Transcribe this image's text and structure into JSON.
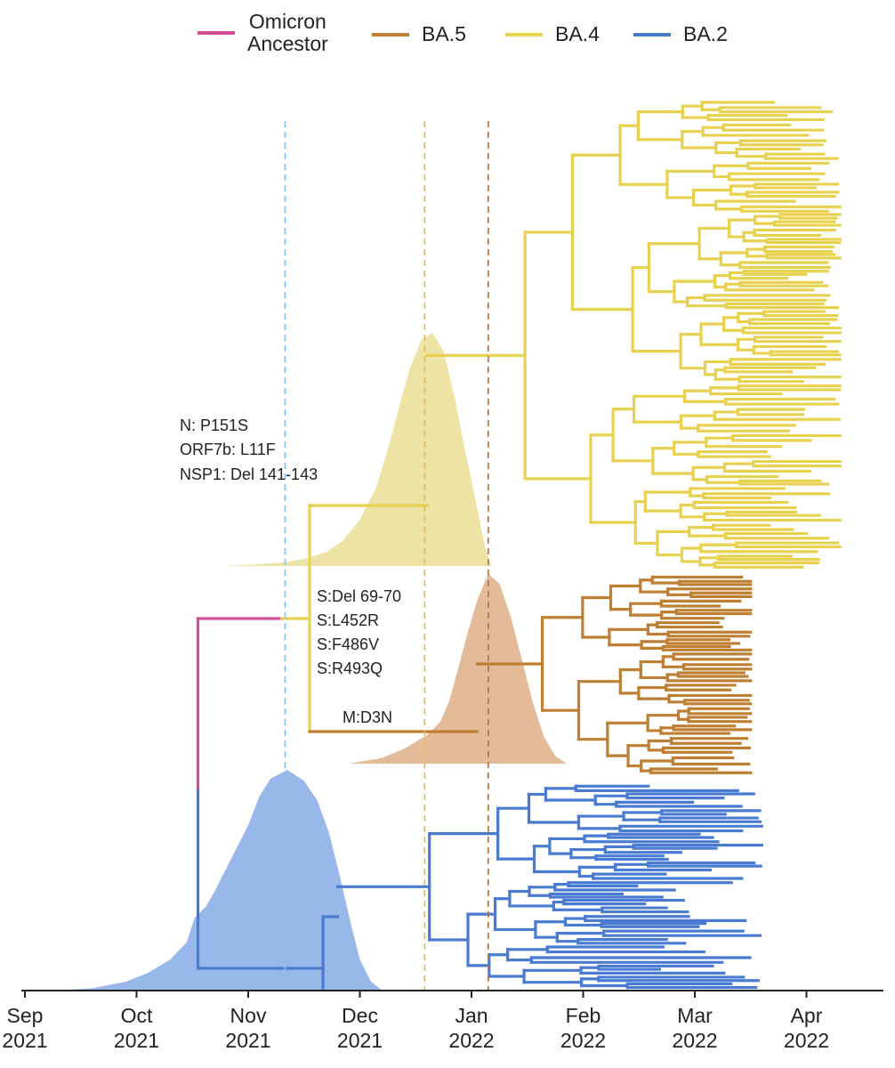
{
  "legend": {
    "items": [
      {
        "key": "omicron",
        "line1": "Omicron",
        "line2": "Ancestor",
        "color": "#d34d97"
      },
      {
        "key": "ba5",
        "label": "BA.5",
        "color": "#bf7f33"
      },
      {
        "key": "ba4",
        "label": "BA.4",
        "color": "#e7d14f"
      },
      {
        "key": "ba2",
        "label": "BA.2",
        "color": "#4a7bd3"
      }
    ]
  },
  "annotations": {
    "ba4_mutations": [
      "N: P151S",
      "ORF7b: L11F",
      "NSP1: Del 141-143"
    ],
    "ba5_mutations": [
      "S:Del 69-70",
      "S:L452R",
      "S:F486V",
      "S:R493Q"
    ],
    "ba5_m": "M:D3N"
  },
  "chart_data": {
    "type": "phylogenetic-tree-with-density",
    "title": "",
    "xlabel": "",
    "ylabel": "",
    "x_range_months": [
      0,
      7.4
    ],
    "x_origin": "2021-09",
    "ticks": [
      {
        "m": 0,
        "line1": "Sep",
        "line2": "2021"
      },
      {
        "m": 1,
        "line1": "Oct",
        "line2": "2021"
      },
      {
        "m": 2,
        "line1": "Nov",
        "line2": "2021"
      },
      {
        "m": 3,
        "line1": "Dec",
        "line2": "2021"
      },
      {
        "m": 4,
        "line1": "Jan",
        "line2": "2022"
      },
      {
        "m": 5,
        "line1": "Feb",
        "line2": "2022"
      },
      {
        "m": 6,
        "line1": "Mar",
        "line2": "2022"
      },
      {
        "m": 7,
        "line1": "Apr",
        "line2": "2022"
      }
    ],
    "tmrca_lines": [
      {
        "lineage": "BA.2",
        "date_m": 2.33,
        "color": "#8cc0e8"
      },
      {
        "lineage": "BA.4",
        "date_m": 3.58,
        "color": "#e8b84a"
      },
      {
        "lineage": "BA.5",
        "date_m": 4.15,
        "color": "#b07046"
      }
    ],
    "densities": [
      {
        "lineage": "BA.2",
        "color": "#98b8ea",
        "points": [
          [
            0.25,
            0
          ],
          [
            0.6,
            0.01
          ],
          [
            0.9,
            0.04
          ],
          [
            1.1,
            0.08
          ],
          [
            1.3,
            0.14
          ],
          [
            1.45,
            0.22
          ],
          [
            1.52,
            0.33
          ],
          [
            1.62,
            0.38
          ],
          [
            1.7,
            0.45
          ],
          [
            1.85,
            0.6
          ],
          [
            2.0,
            0.75
          ],
          [
            2.1,
            0.88
          ],
          [
            2.2,
            0.96
          ],
          [
            2.35,
            1.0
          ],
          [
            2.5,
            0.95
          ],
          [
            2.62,
            0.86
          ],
          [
            2.72,
            0.72
          ],
          [
            2.82,
            0.52
          ],
          [
            2.92,
            0.3
          ],
          [
            3.0,
            0.14
          ],
          [
            3.1,
            0.04
          ],
          [
            3.2,
            0
          ]
        ]
      },
      {
        "lineage": "BA.5",
        "color": "#e3bb98",
        "points": [
          [
            2.9,
            0
          ],
          [
            3.2,
            0.03
          ],
          [
            3.4,
            0.08
          ],
          [
            3.6,
            0.15
          ],
          [
            3.72,
            0.22
          ],
          [
            3.8,
            0.33
          ],
          [
            3.88,
            0.5
          ],
          [
            3.96,
            0.68
          ],
          [
            4.05,
            0.86
          ],
          [
            4.15,
            1.0
          ],
          [
            4.25,
            0.95
          ],
          [
            4.35,
            0.78
          ],
          [
            4.45,
            0.55
          ],
          [
            4.55,
            0.32
          ],
          [
            4.65,
            0.14
          ],
          [
            4.75,
            0.04
          ],
          [
            4.85,
            0
          ]
        ]
      },
      {
        "lineage": "BA.4",
        "color": "#ede3a4",
        "points": [
          [
            1.75,
            0
          ],
          [
            2.0,
            0.005
          ],
          [
            2.3,
            0.015
          ],
          [
            2.5,
            0.03
          ],
          [
            2.7,
            0.06
          ],
          [
            2.85,
            0.11
          ],
          [
            3.0,
            0.2
          ],
          [
            3.15,
            0.34
          ],
          [
            3.25,
            0.5
          ],
          [
            3.35,
            0.68
          ],
          [
            3.45,
            0.85
          ],
          [
            3.55,
            0.97
          ],
          [
            3.65,
            1.0
          ],
          [
            3.75,
            0.92
          ],
          [
            3.85,
            0.72
          ],
          [
            3.95,
            0.48
          ],
          [
            4.05,
            0.25
          ],
          [
            4.12,
            0.08
          ],
          [
            4.18,
            0
          ]
        ]
      }
    ],
    "tree": {
      "ancestor_x": 1.55,
      "ancestor_color": "#d34d97",
      "ba2": {
        "root_x": 1.55,
        "color": "#4a7bd3",
        "tip_max": 6.6
      },
      "ba45_split_x": 2.4,
      "ba4": {
        "root_x": 3.55,
        "color": "#e7d14f",
        "tip_max": 7.3
      },
      "ba5": {
        "root_x": 4.05,
        "color": "#bf7f33",
        "tip_max": 6.5
      }
    }
  }
}
